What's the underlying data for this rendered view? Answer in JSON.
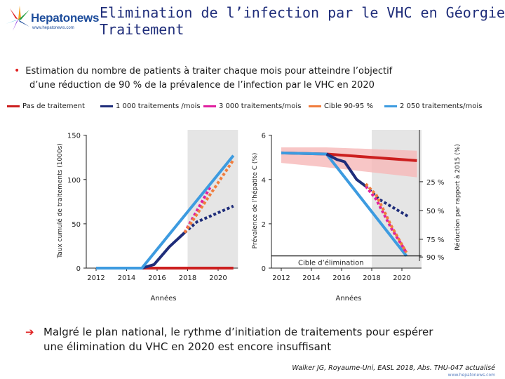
{
  "header": {
    "logo_text": "Hepatonews",
    "logo_url": "www.hepatonews.com",
    "title_line1": "Elimination de l’infection par le VHC en Géorgie",
    "title_line2": "Traitement"
  },
  "bullet": {
    "line1": "Estimation du nombre de patients à traiter chaque mois pour atteindre l’objectif",
    "line2": "d’une réduction de 90 % de la prévalence de l’infection par le VHC en 2020"
  },
  "legend": [
    {
      "label": "Pas de traitement",
      "color": "#cc1f1f",
      "style": "solid"
    },
    {
      "label": "1 000 traitements /mois",
      "color": "#1f2d7a",
      "style": "solid"
    },
    {
      "label": "3 000 traitements/mois",
      "color": "#e0209f",
      "style": "solid"
    },
    {
      "label": "Cible 90-95 %",
      "color": "#f07c3c",
      "style": "solid"
    },
    {
      "label": "2 050 traitements/mois",
      "color": "#3d9be0",
      "style": "solid"
    }
  ],
  "chart_data": [
    {
      "type": "line",
      "title": "",
      "xlabel": "Années",
      "ylabel": "Taux cumulé de traitements (1000s)",
      "xlim": [
        2011.5,
        2021.5
      ],
      "ylim": [
        0,
        160
      ],
      "x_ticks": [
        "2012",
        "2014",
        "2016",
        "2018",
        "2020"
      ],
      "y_ticks": [
        "0",
        "50",
        "100",
        "150"
      ],
      "shaded_region": [
        2018,
        2021.3
      ],
      "series": [
        {
          "name": "Pas de traitement",
          "style": "solid",
          "x": [
            2012,
            2021
          ],
          "y": [
            0,
            0
          ]
        },
        {
          "name": "1 000 traitements /mois",
          "style": "solid",
          "x": [
            2012,
            2015,
            2015.8,
            2016.8,
            2017.8
          ],
          "y": [
            0,
            0,
            4,
            24,
            40
          ]
        },
        {
          "name": "1 000 traitements /mois (projection)",
          "style": "dotted",
          "x": [
            2017.8,
            2018.6,
            2021
          ],
          "y": [
            40,
            52,
            70
          ]
        },
        {
          "name": "3 000 traitements/mois",
          "style": "dotted",
          "x": [
            2017.8,
            2019.5
          ],
          "y": [
            40,
            92
          ]
        },
        {
          "name": "Cible 90-95 %",
          "style": "dotted",
          "x": [
            2017.8,
            2021
          ],
          "y": [
            40,
            122
          ]
        },
        {
          "name": "2 050 traitements/mois",
          "style": "solid",
          "x": [
            2012,
            2015,
            2021
          ],
          "y": [
            0,
            0,
            127
          ]
        }
      ]
    },
    {
      "type": "line",
      "title": "",
      "xlabel": "Années",
      "ylabel": "Prévalence de l’hépatite C (%)",
      "y2label": "Réduction par rapport à 2015 (%)",
      "xlim": [
        2011.5,
        2021.5
      ],
      "ylim": [
        0,
        6.4
      ],
      "x_ticks": [
        "2012",
        "2014",
        "2016",
        "2018",
        "2020"
      ],
      "y_ticks": [
        "0",
        "2",
        "4",
        "6"
      ],
      "right_ticks": [
        "25 %",
        "50 %",
        "75 %",
        "90 %"
      ],
      "shaded_region": [
        2018,
        2021.3
      ],
      "annotation": "Cible d’élimination",
      "elimination_target": 0.55,
      "series": [
        {
          "name": "Pas de traitement",
          "style": "solid",
          "x": [
            2012,
            2015,
            2021
          ],
          "y": [
            5.2,
            5.15,
            4.85
          ],
          "band_upper": [
            5.45,
            5.45,
            5.3
          ],
          "band_lower": [
            4.75,
            4.55,
            4.1
          ]
        },
        {
          "name": "2 050 traitements/mois",
          "style": "solid",
          "x": [
            2012,
            2015,
            2020.3
          ],
          "y": [
            5.2,
            5.15,
            0.55
          ]
        },
        {
          "name": "1 000 traitements /mois",
          "style": "solid",
          "x": [
            2015,
            2015.7,
            2016.2,
            2016.6,
            2017,
            2017.6
          ],
          "y": [
            5.15,
            4.9,
            4.8,
            4.4,
            4.0,
            3.7
          ]
        },
        {
          "name": "1 000 traitements /mois (projection)",
          "style": "dotted",
          "x": [
            2017.6,
            2018.5,
            2020.5
          ],
          "y": [
            3.7,
            3.1,
            2.3
          ]
        },
        {
          "name": "3 000 traitements/mois",
          "style": "dotted",
          "x": [
            2017.6,
            2018.3,
            2019.3,
            2020.3
          ],
          "y": [
            3.7,
            3.1,
            1.8,
            0.7
          ]
        },
        {
          "name": "Cible 90-95 %",
          "style": "dotted",
          "x": [
            2017.6,
            2018.3,
            2019.3,
            2020.3
          ],
          "y": [
            3.8,
            3.3,
            1.9,
            0.7
          ]
        }
      ]
    }
  ],
  "conclusion": {
    "line1": "Malgré le plan national, le rythme d’initiation de traitements pour espérer",
    "line2": "une élimination du VHC en 2020 est encore insuffisant"
  },
  "source": "Walker JG, Royaume-Uni, EASL 2018, Abs. THU-047 actualisé",
  "footer_url": "www.hepatonews.com"
}
